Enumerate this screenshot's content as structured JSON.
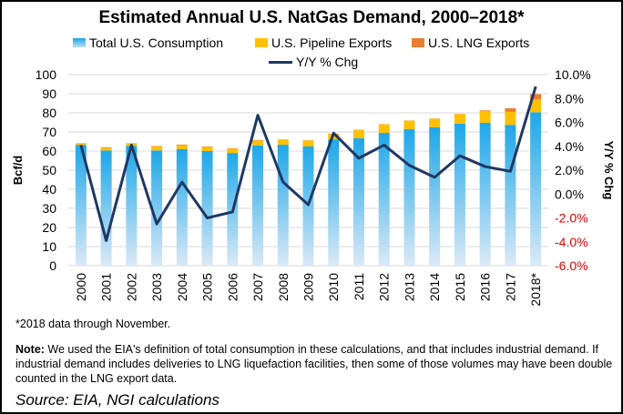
{
  "chart_data": {
    "type": "bar",
    "title": "Estimated Annual U.S. NatGas Demand, 2000–2018*",
    "ylabel": "Bcf/d",
    "y2label": "Y/Y % Chg",
    "ylim": [
      0,
      100
    ],
    "yticks": [
      0,
      10,
      20,
      30,
      40,
      50,
      60,
      70,
      80,
      90,
      100
    ],
    "y2lim": [
      -6,
      10
    ],
    "y2ticks": [
      "-6.0%",
      "-4.0%",
      "-2.0%",
      "0.0%",
      "2.0%",
      "4.0%",
      "6.0%",
      "8.0%",
      "10.0%"
    ],
    "grid": true,
    "legend": "top",
    "categories": [
      "2000",
      "2001",
      "2002",
      "2003",
      "2004",
      "2005",
      "2006",
      "2007",
      "2008",
      "2009",
      "2010",
      "2011",
      "2012",
      "2013",
      "2014",
      "2015",
      "2016",
      "2017",
      "2018*"
    ],
    "series": [
      {
        "name": "Total U.S. Consumption",
        "type": "stacked-bar",
        "color": "#1ea7e8",
        "values": [
          63.2,
          60.3,
          62.7,
          60.3,
          61.0,
          60.0,
          59.0,
          62.9,
          63.3,
          62.4,
          66.0,
          66.7,
          69.5,
          71.4,
          72.4,
          74.3,
          74.8,
          73.7,
          80.3
        ]
      },
      {
        "name": "U.S. Pipeline Exports",
        "type": "stacked-bar",
        "color": "#ffc000",
        "values": [
          0.7,
          1.4,
          1.2,
          2.2,
          2.1,
          2.2,
          2.2,
          2.6,
          2.7,
          3.1,
          2.9,
          4.2,
          4.5,
          4.5,
          4.5,
          5.0,
          6.0,
          6.8,
          6.7
        ]
      },
      {
        "name": "U.S. LNG Exports",
        "type": "stacked-bar",
        "color": "#ed7d31",
        "values": [
          0.2,
          0.3,
          0.2,
          0.2,
          0.3,
          0.2,
          0.2,
          0.2,
          0.1,
          0.1,
          0.2,
          0.2,
          0.1,
          0.1,
          0.1,
          0.1,
          0.5,
          1.9,
          2.8
        ]
      },
      {
        "name": "Y/Y % Chg",
        "type": "line",
        "axis": "right",
        "color": "#1f3864",
        "values": [
          4.1,
          -3.9,
          4.1,
          -2.5,
          1.0,
          -2.0,
          -1.5,
          6.6,
          1.0,
          -0.9,
          5.1,
          3.0,
          4.1,
          2.4,
          1.4,
          3.2,
          2.3,
          1.9,
          9.0
        ]
      }
    ],
    "negative_tick_color": "#e00000"
  },
  "footnote": "*2018 data through November.",
  "note_label": "Note:",
  "note_text": " We used the EIA's definition of total consumption in these calculations, and that includes industrial demand. If industrial demand includes deliveries to LNG liquefaction facilities, then some of those volumes may have been double counted in the LNG export data.",
  "source": "Source: EIA, NGI calculations"
}
